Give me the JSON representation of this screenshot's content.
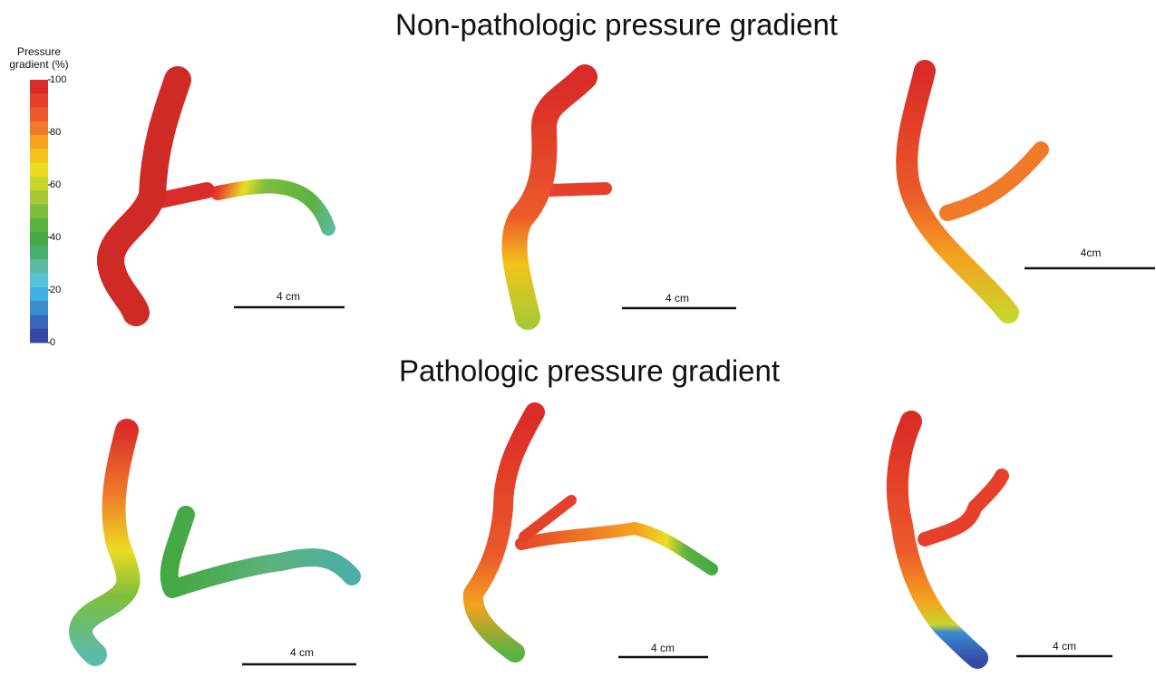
{
  "titles": [
    "Non-pathologic pressure gradient",
    "Pathologic pressure gradient"
  ],
  "legend": {
    "title_lines": [
      "Pressure",
      "gradient (%)"
    ],
    "range": [
      0,
      100
    ],
    "ticks": [
      100,
      80,
      60,
      40,
      20,
      0
    ],
    "colors": [
      "#d92b27",
      "#e6402a",
      "#ec5a2a",
      "#f07a28",
      "#f5a21f",
      "#f2c41b",
      "#e9dc23",
      "#c9d52c",
      "#a6c935",
      "#7fbe3c",
      "#5cb240",
      "#44a944",
      "#4aae6c",
      "#5cbba6",
      "#58c3d6",
      "#3fb1e4",
      "#3b8bd1",
      "#3a66bb",
      "#3549a4"
    ]
  },
  "panels": [
    {
      "scale_label": "4 cm"
    },
    {
      "scale_label": "4 cm"
    },
    {
      "scale_label": "4cm"
    },
    {
      "scale_label": "4 cm"
    },
    {
      "scale_label": "4 cm"
    },
    {
      "scale_label": "4 cm"
    }
  ]
}
